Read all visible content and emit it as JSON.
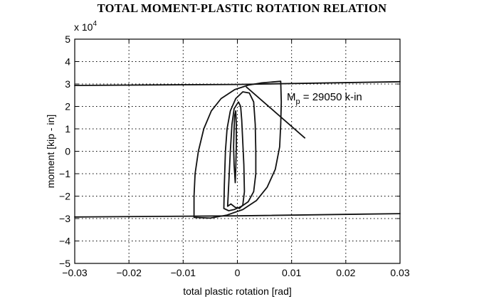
{
  "chart_data": {
    "type": "line",
    "title": "TOTAL MOMENT-PLASTIC ROTATION RELATION",
    "xlabel": "total plastic rotation [rad]",
    "ylabel": "moment  [kip - in]",
    "y_multiplier_base": "x 10",
    "y_multiplier_exp": "4",
    "xlim": [
      -0.03,
      0.03
    ],
    "ylim": [
      -50000,
      50000
    ],
    "x_ticks": [
      -0.03,
      -0.02,
      -0.01,
      0,
      0.01,
      0.02,
      0.03
    ],
    "x_tick_labels": [
      "−0.03",
      "−0.02",
      "−0.01",
      "0",
      "0.01",
      "0.02",
      "0.03"
    ],
    "y_ticks": [
      -50000,
      -40000,
      -30000,
      -20000,
      -10000,
      0,
      10000,
      20000,
      30000,
      40000,
      50000
    ],
    "y_tick_labels": [
      "−5",
      "−4",
      "−3",
      "−2",
      "−1",
      "0",
      "1",
      "2",
      "3",
      "4",
      "5"
    ],
    "grid": true,
    "annotation": {
      "text_main": "M",
      "text_sub": "p",
      "text_rest": " = 29050 k-in",
      "arrow_tail": [
        0.0125,
        5800
      ],
      "arrow_head": [
        0.0016,
        28800
      ]
    },
    "series": [
      {
        "values": [
          [
            -0.03,
            29350
          ],
          [
            0.0,
            29800
          ],
          [
            0.03,
            31000
          ]
        ]
      },
      {
        "values": [
          [
            -0.03,
            -29300
          ],
          [
            0.0,
            -28800
          ],
          [
            0.03,
            -27800
          ]
        ]
      },
      {
        "values": [
          [
            -0.0004,
            -14000
          ],
          [
            -0.0006,
            -6000
          ],
          [
            -0.0007,
            2000
          ],
          [
            -0.0006,
            10000
          ],
          [
            -0.0005,
            16000
          ],
          [
            -0.0003,
            18000
          ],
          [
            -0.0002,
            12000
          ],
          [
            -0.0002,
            2000
          ],
          [
            -0.0003,
            -8000
          ],
          [
            -0.0004,
            -14000
          ]
        ]
      },
      {
        "values": [
          [
            -0.0018,
            -24500
          ],
          [
            -0.0016,
            -15000
          ],
          [
            -0.0013,
            0
          ],
          [
            -0.001,
            12000
          ],
          [
            -0.0006,
            19000
          ],
          [
            0.0002,
            22000
          ],
          [
            0.0006,
            20000
          ],
          [
            0.0008,
            14000
          ],
          [
            0.001,
            4000
          ],
          [
            0.0012,
            -6000
          ],
          [
            0.0013,
            -18000
          ],
          [
            0.001,
            -24000
          ],
          [
            0.0004,
            -25500
          ],
          [
            -0.0004,
            -25000
          ],
          [
            -0.0012,
            -23500
          ],
          [
            -0.0018,
            -24500
          ]
        ]
      },
      {
        "values": [
          [
            -0.0025,
            -25500
          ],
          [
            -0.0024,
            -15000
          ],
          [
            -0.0022,
            0
          ],
          [
            -0.0019,
            10000
          ],
          [
            -0.0013,
            18000
          ],
          [
            -0.0003,
            23500
          ],
          [
            0.001,
            26500
          ],
          [
            0.0022,
            26000
          ],
          [
            0.003,
            22000
          ],
          [
            0.0033,
            12000
          ],
          [
            0.0034,
            0
          ],
          [
            0.0034,
            -10000
          ],
          [
            0.003,
            -18000
          ],
          [
            0.002,
            -22500
          ],
          [
            0.0008,
            -24500
          ],
          [
            -0.0006,
            -26000
          ],
          [
            -0.0016,
            -26500
          ],
          [
            -0.0025,
            -25500
          ]
        ]
      },
      {
        "values": [
          [
            -0.008,
            -29500
          ],
          [
            -0.008,
            -20000
          ],
          [
            -0.0078,
            -10000
          ],
          [
            -0.0072,
            0
          ],
          [
            -0.0062,
            10000
          ],
          [
            -0.0048,
            18000
          ],
          [
            -0.003,
            23500
          ],
          [
            -0.0005,
            27500
          ],
          [
            0.002,
            29500
          ],
          [
            0.0045,
            30500
          ],
          [
            0.008,
            31200
          ],
          [
            0.0081,
            22000
          ],
          [
            0.008,
            12000
          ],
          [
            0.0078,
            2000
          ],
          [
            0.007,
            -8000
          ],
          [
            0.0055,
            -16000
          ],
          [
            0.0035,
            -22000
          ],
          [
            0.001,
            -26000
          ],
          [
            -0.002,
            -28500
          ],
          [
            -0.005,
            -29800
          ],
          [
            -0.008,
            -29500
          ]
        ]
      }
    ]
  }
}
